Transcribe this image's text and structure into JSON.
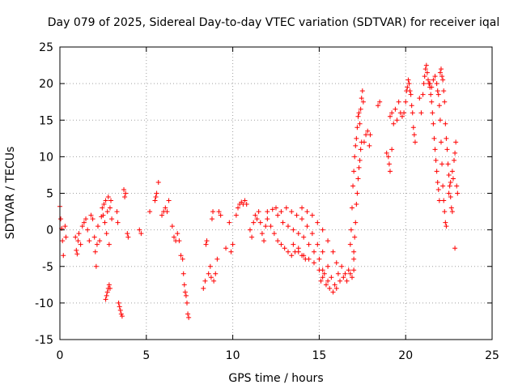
{
  "chart_data": {
    "type": "scatter",
    "title": "Day 079 of 2025, Sidereal Day-to-day VTEC variation (SDTVAR) for receiver iqal",
    "xlabel": "GPS time / hours",
    "ylabel": "SDTVAR / TECUs",
    "xlim": [
      0,
      25
    ],
    "ylim": [
      -15,
      25
    ],
    "x_ticks": [
      0,
      5,
      10,
      15,
      20,
      25
    ],
    "x_tick_labels": [
      "0",
      "5",
      "10",
      "15",
      "20",
      "25"
    ],
    "y_ticks": [
      -15,
      -10,
      -5,
      0,
      5,
      10,
      15,
      20,
      25
    ],
    "y_tick_labels": [
      "-15",
      "-10",
      "-5",
      "0",
      "5",
      "10",
      "15",
      "20",
      "25"
    ],
    "grid": true,
    "marker": "plus",
    "color": "#ff0000",
    "series": [
      {
        "name": "SDTVAR",
        "points": [
          [
            0.0,
            3.2
          ],
          [
            0.05,
            1.5
          ],
          [
            0.1,
            0.2
          ],
          [
            0.15,
            -1.5
          ],
          [
            0.2,
            -3.5
          ],
          [
            0.3,
            0.5
          ],
          [
            0.35,
            -1.0
          ],
          [
            0.9,
            -1.0
          ],
          [
            0.95,
            -2.8
          ],
          [
            1.0,
            -3.3
          ],
          [
            1.05,
            -1.5
          ],
          [
            1.1,
            -0.5
          ],
          [
            1.2,
            -2.0
          ],
          [
            1.3,
            0.5
          ],
          [
            1.4,
            1.0
          ],
          [
            1.5,
            1.5
          ],
          [
            1.6,
            0.0
          ],
          [
            1.7,
            -1.5
          ],
          [
            1.8,
            2.0
          ],
          [
            1.9,
            1.5
          ],
          [
            2.0,
            -1.0
          ],
          [
            2.05,
            -3.0
          ],
          [
            2.1,
            -5.0
          ],
          [
            2.15,
            -2.0
          ],
          [
            2.2,
            0.5
          ],
          [
            2.3,
            -1.5
          ],
          [
            2.4,
            1.8
          ],
          [
            2.45,
            3.0
          ],
          [
            2.5,
            2.0
          ],
          [
            2.55,
            3.5
          ],
          [
            2.6,
            1.0
          ],
          [
            2.65,
            4.0
          ],
          [
            2.7,
            -0.5
          ],
          [
            2.75,
            2.5
          ],
          [
            2.8,
            4.5
          ],
          [
            2.85,
            -2.0
          ],
          [
            2.9,
            3.0
          ],
          [
            2.95,
            4.0
          ],
          [
            3.0,
            1.5
          ],
          [
            2.65,
            -9.5
          ],
          [
            2.7,
            -9.0
          ],
          [
            2.75,
            -8.5
          ],
          [
            2.8,
            -8.0
          ],
          [
            2.85,
            -7.5
          ],
          [
            2.9,
            -8.0
          ],
          [
            3.3,
            2.5
          ],
          [
            3.35,
            1.0
          ],
          [
            3.4,
            -10.0
          ],
          [
            3.45,
            -10.5
          ],
          [
            3.5,
            -11.0
          ],
          [
            3.55,
            -11.5
          ],
          [
            3.6,
            -11.8
          ],
          [
            3.7,
            5.5
          ],
          [
            3.75,
            4.5
          ],
          [
            3.8,
            5.0
          ],
          [
            3.9,
            -0.5
          ],
          [
            3.95,
            -1.0
          ],
          [
            4.6,
            0.0
          ],
          [
            4.7,
            -0.5
          ],
          [
            5.2,
            2.5
          ],
          [
            5.5,
            4.0
          ],
          [
            5.55,
            4.5
          ],
          [
            5.6,
            5.0
          ],
          [
            5.7,
            6.5
          ],
          [
            5.9,
            2.0
          ],
          [
            6.0,
            2.5
          ],
          [
            6.1,
            3.0
          ],
          [
            6.2,
            2.5
          ],
          [
            6.3,
            4.0
          ],
          [
            6.5,
            0.5
          ],
          [
            6.6,
            -1.0
          ],
          [
            6.7,
            -1.5
          ],
          [
            6.8,
            -0.5
          ],
          [
            6.9,
            -1.5
          ],
          [
            7.0,
            -3.5
          ],
          [
            7.1,
            -4.0
          ],
          [
            7.15,
            -6.0
          ],
          [
            7.2,
            -7.5
          ],
          [
            7.25,
            -8.5
          ],
          [
            7.3,
            -9.0
          ],
          [
            7.35,
            -10.0
          ],
          [
            7.4,
            -11.5
          ],
          [
            7.45,
            -12.0
          ],
          [
            8.3,
            -8.0
          ],
          [
            8.4,
            -7.0
          ],
          [
            8.45,
            -2.0
          ],
          [
            8.5,
            -1.5
          ],
          [
            8.6,
            -6.0
          ],
          [
            8.7,
            -5.0
          ],
          [
            8.75,
            -6.5
          ],
          [
            8.8,
            1.5
          ],
          [
            8.85,
            2.5
          ],
          [
            8.9,
            -7.0
          ],
          [
            9.0,
            -6.0
          ],
          [
            9.1,
            -4.0
          ],
          [
            9.2,
            2.5
          ],
          [
            9.3,
            2.0
          ],
          [
            9.6,
            -2.5
          ],
          [
            9.8,
            1.0
          ],
          [
            9.9,
            -3.0
          ],
          [
            10.0,
            -2.0
          ],
          [
            10.2,
            2.0
          ],
          [
            10.3,
            3.0
          ],
          [
            10.4,
            3.5
          ],
          [
            10.5,
            3.8
          ],
          [
            10.6,
            3.5
          ],
          [
            10.7,
            4.0
          ],
          [
            10.8,
            3.5
          ],
          [
            11.0,
            0.0
          ],
          [
            11.1,
            -1.0
          ],
          [
            11.2,
            1.0
          ],
          [
            11.3,
            2.0
          ],
          [
            11.4,
            1.5
          ],
          [
            11.5,
            2.5
          ],
          [
            11.6,
            1.0
          ],
          [
            11.7,
            -0.5
          ],
          [
            11.8,
            -1.5
          ],
          [
            11.9,
            0.5
          ],
          [
            12.0,
            1.5
          ],
          [
            12.2,
            0.5
          ],
          [
            12.4,
            -0.5
          ],
          [
            12.6,
            -1.5
          ],
          [
            12.8,
            -2.0
          ],
          [
            13.0,
            -2.5
          ],
          [
            13.2,
            -3.0
          ],
          [
            13.4,
            -3.5
          ],
          [
            13.6,
            -3.0
          ],
          [
            13.8,
            -2.5
          ],
          [
            14.0,
            -3.5
          ],
          [
            14.2,
            -4.0
          ],
          [
            12.0,
            2.5
          ],
          [
            12.3,
            2.8
          ],
          [
            12.6,
            2.0
          ],
          [
            12.9,
            1.0
          ],
          [
            13.2,
            0.5
          ],
          [
            13.5,
            0.0
          ],
          [
            13.8,
            -0.5
          ],
          [
            14.1,
            -1.0
          ],
          [
            14.4,
            -2.0
          ],
          [
            14.7,
            -3.0
          ],
          [
            15.0,
            -4.0
          ],
          [
            15.2,
            -5.5
          ],
          [
            12.5,
            3.0
          ],
          [
            12.8,
            2.5
          ],
          [
            13.1,
            3.0
          ],
          [
            13.4,
            2.5
          ],
          [
            13.7,
            2.0
          ],
          [
            14.0,
            1.5
          ],
          [
            14.3,
            0.5
          ],
          [
            14.6,
            -0.5
          ],
          [
            14.9,
            -2.0
          ],
          [
            15.2,
            -3.0
          ],
          [
            15.5,
            -5.0
          ],
          [
            14.0,
            3.0
          ],
          [
            14.3,
            2.5
          ],
          [
            14.6,
            2.0
          ],
          [
            14.9,
            1.0
          ],
          [
            15.2,
            0.0
          ],
          [
            15.5,
            -1.5
          ],
          [
            15.8,
            -3.0
          ],
          [
            16.0,
            -4.5
          ],
          [
            13.5,
            -2.0
          ],
          [
            13.8,
            -3.0
          ],
          [
            14.1,
            -3.5
          ],
          [
            14.4,
            -4.0
          ],
          [
            14.7,
            -4.5
          ],
          [
            15.0,
            -5.5
          ],
          [
            15.2,
            -6.5
          ],
          [
            15.4,
            -7.5
          ],
          [
            15.6,
            -8.0
          ],
          [
            15.8,
            -8.5
          ],
          [
            16.0,
            -8.0
          ],
          [
            16.2,
            -7.0
          ],
          [
            16.4,
            -6.5
          ],
          [
            16.6,
            -7.0
          ],
          [
            16.8,
            -6.0
          ],
          [
            17.0,
            -5.5
          ],
          [
            15.1,
            -7.0
          ],
          [
            15.3,
            -6.0
          ],
          [
            15.5,
            -7.0
          ],
          [
            15.7,
            -6.5
          ],
          [
            15.9,
            -7.5
          ],
          [
            16.1,
            -6.0
          ],
          [
            16.3,
            -5.0
          ],
          [
            16.5,
            -6.0
          ],
          [
            16.7,
            -5.5
          ],
          [
            16.9,
            -6.5
          ],
          [
            17.0,
            -4.0
          ],
          [
            16.8,
            -2.0
          ],
          [
            16.85,
            0.0
          ],
          [
            16.9,
            3.0
          ],
          [
            16.95,
            6.0
          ],
          [
            17.0,
            8.0
          ],
          [
            17.05,
            10.0
          ],
          [
            17.1,
            11.5
          ],
          [
            17.15,
            12.5
          ],
          [
            17.2,
            14.0
          ],
          [
            17.25,
            15.5
          ],
          [
            17.3,
            16.0
          ],
          [
            17.35,
            14.5
          ],
          [
            17.4,
            16.5
          ],
          [
            17.45,
            18.0
          ],
          [
            17.5,
            19.0
          ],
          [
            17.55,
            17.5
          ],
          [
            17.0,
            -3.0
          ],
          [
            17.05,
            -1.0
          ],
          [
            17.1,
            1.0
          ],
          [
            17.15,
            3.5
          ],
          [
            17.2,
            5.0
          ],
          [
            17.25,
            7.0
          ],
          [
            17.3,
            8.5
          ],
          [
            17.35,
            9.5
          ],
          [
            17.4,
            11.0
          ],
          [
            17.45,
            12.0
          ],
          [
            17.6,
            12.0
          ],
          [
            17.7,
            13.0
          ],
          [
            17.8,
            13.5
          ],
          [
            17.9,
            11.5
          ],
          [
            17.95,
            13.0
          ],
          [
            18.4,
            17.0
          ],
          [
            18.5,
            17.5
          ],
          [
            18.9,
            10.5
          ],
          [
            19.0,
            10.0
          ],
          [
            19.05,
            9.0
          ],
          [
            19.1,
            8.0
          ],
          [
            19.2,
            11.0
          ],
          [
            19.1,
            15.5
          ],
          [
            19.2,
            16.0
          ],
          [
            19.3,
            14.5
          ],
          [
            19.4,
            16.5
          ],
          [
            19.5,
            15.0
          ],
          [
            19.6,
            17.5
          ],
          [
            19.7,
            16.0
          ],
          [
            19.8,
            15.5
          ],
          [
            19.9,
            16.0
          ],
          [
            20.0,
            17.5
          ],
          [
            20.05,
            19.0
          ],
          [
            20.1,
            19.5
          ],
          [
            20.15,
            20.5
          ],
          [
            20.2,
            20.0
          ],
          [
            20.25,
            19.0
          ],
          [
            20.3,
            18.5
          ],
          [
            20.35,
            17.0
          ],
          [
            20.4,
            16.0
          ],
          [
            20.45,
            14.0
          ],
          [
            20.5,
            13.0
          ],
          [
            20.55,
            12.0
          ],
          [
            20.8,
            18.0
          ],
          [
            20.9,
            16.0
          ],
          [
            21.0,
            18.5
          ],
          [
            21.05,
            20.0
          ],
          [
            21.1,
            21.0
          ],
          [
            21.15,
            22.0
          ],
          [
            21.2,
            22.5
          ],
          [
            21.25,
            21.5
          ],
          [
            21.3,
            20.5
          ],
          [
            21.35,
            20.0
          ],
          [
            21.4,
            19.5
          ],
          [
            21.45,
            18.5
          ],
          [
            21.5,
            17.5
          ],
          [
            21.55,
            16.0
          ],
          [
            21.6,
            14.5
          ],
          [
            21.65,
            12.5
          ],
          [
            21.7,
            11.0
          ],
          [
            21.75,
            9.5
          ],
          [
            21.8,
            8.0
          ],
          [
            21.85,
            6.5
          ],
          [
            21.9,
            5.5
          ],
          [
            21.95,
            4.0
          ],
          [
            21.4,
            20.0
          ],
          [
            21.5,
            19.5
          ],
          [
            21.6,
            20.5
          ],
          [
            21.7,
            21.0
          ],
          [
            21.8,
            20.0
          ],
          [
            21.85,
            19.0
          ],
          [
            21.9,
            18.5
          ],
          [
            21.95,
            17.0
          ],
          [
            22.0,
            15.0
          ],
          [
            22.05,
            12.0
          ],
          [
            22.1,
            9.0
          ],
          [
            22.15,
            6.0
          ],
          [
            22.2,
            4.0
          ],
          [
            22.25,
            2.5
          ],
          [
            22.3,
            1.0
          ],
          [
            22.35,
            0.5
          ],
          [
            22.0,
            21.5
          ],
          [
            22.05,
            22.0
          ],
          [
            22.1,
            21.0
          ],
          [
            22.15,
            20.5
          ],
          [
            22.2,
            19.0
          ],
          [
            22.25,
            17.5
          ],
          [
            22.3,
            14.5
          ],
          [
            22.35,
            12.5
          ],
          [
            22.4,
            11.0
          ],
          [
            22.45,
            9.0
          ],
          [
            22.5,
            7.5
          ],
          [
            22.55,
            6.0
          ],
          [
            22.6,
            4.5
          ],
          [
            22.65,
            3.0
          ],
          [
            22.7,
            2.5
          ],
          [
            22.5,
            5.0
          ],
          [
            22.6,
            6.5
          ],
          [
            22.7,
            8.0
          ],
          [
            22.75,
            7.0
          ],
          [
            22.8,
            9.5
          ],
          [
            22.85,
            10.5
          ],
          [
            22.9,
            12.0
          ],
          [
            22.95,
            6.0
          ],
          [
            23.0,
            5.0
          ],
          [
            22.85,
            -2.5
          ]
        ]
      }
    ]
  }
}
